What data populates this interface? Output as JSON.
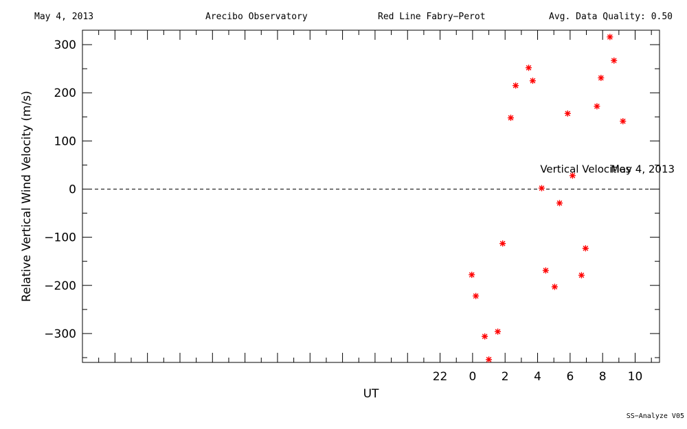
{
  "header": {
    "date": "May 4, 2013",
    "observatory": "Arecibo Observatory",
    "instrument": "Red Line Fabry−Perot",
    "quality": "Avg. Data Quality: 0.50"
  },
  "footer": {
    "version": "SS−Analyze V05"
  },
  "chart_data": {
    "type": "scatter",
    "xlabel": "UT",
    "ylabel": "Relative Vertical Wind Velocity (m/s)",
    "xlim": [
      -24,
      11.5
    ],
    "ylim": [
      -360,
      330
    ],
    "xticks": [
      22,
      0,
      2,
      4,
      6,
      8,
      10
    ],
    "yticks": [
      300,
      200,
      100,
      0,
      -100,
      -200,
      -300
    ],
    "annotations": [
      "Vertical Velocities",
      "May 4, 2013"
    ],
    "zero_line": true,
    "marker_color": "#ff0000",
    "series": [
      {
        "x": [
          -0.05,
          0.2,
          0.75,
          1.0,
          1.55,
          1.85,
          2.35,
          2.65,
          3.45,
          3.7,
          4.25,
          4.5,
          5.05,
          5.35,
          5.85,
          6.15,
          6.7,
          6.95,
          7.65,
          7.9,
          8.45,
          8.7,
          9.25
        ],
        "y": [
          -178,
          -222,
          -306,
          -354,
          -296,
          -113,
          148,
          215,
          252,
          225,
          2,
          -169,
          -203,
          -29,
          157,
          28,
          -179,
          -123,
          172,
          231,
          316,
          267,
          141
        ]
      }
    ]
  }
}
